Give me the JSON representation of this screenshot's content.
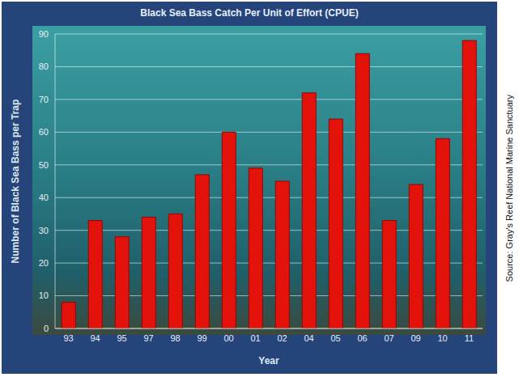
{
  "chart_data": {
    "type": "bar",
    "title": "Black Sea Bass Catch Per Unit of Effort (CPUE)",
    "x_label": "Year",
    "y_label": "Number of Black Sea Bass per Trap",
    "source": "Source: Gray's Reef National Marine Sanctuary",
    "categories": [
      "93",
      "94",
      "95",
      "97",
      "98",
      "99",
      "00",
      "01",
      "02",
      "04",
      "05",
      "06",
      "07",
      "09",
      "10",
      "11"
    ],
    "values": [
      8,
      33,
      28,
      34,
      35,
      47,
      60,
      49,
      45,
      72,
      64,
      84,
      33,
      44,
      58,
      88
    ],
    "color": "#e3120b",
    "ylim": [
      0,
      90
    ],
    "yticks": [
      0,
      10,
      20,
      30,
      40,
      50,
      60,
      70,
      80,
      90
    ],
    "grid": true
  }
}
